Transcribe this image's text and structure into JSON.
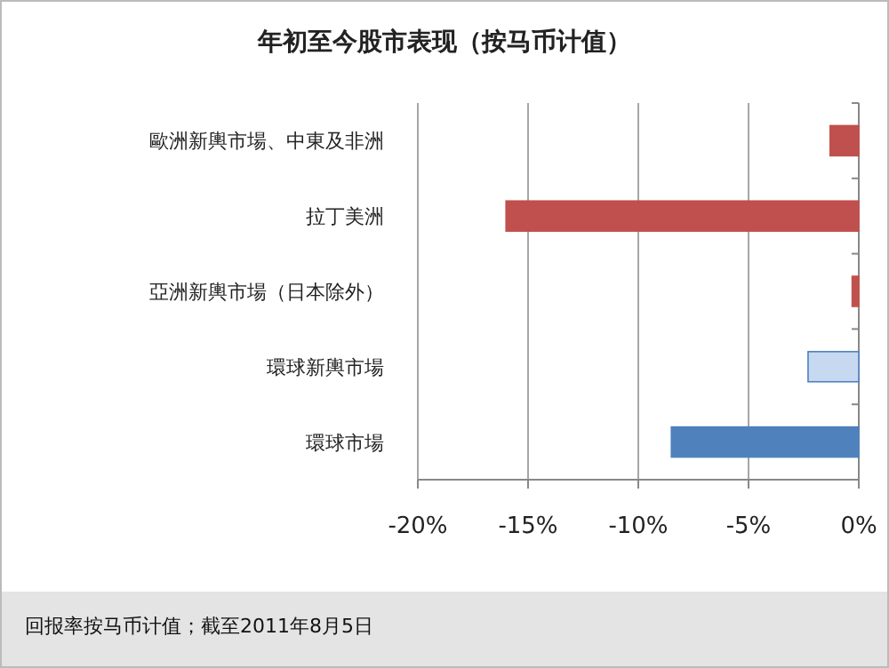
{
  "chart_data": {
    "type": "bar",
    "orientation": "horizontal",
    "title": "年初至今股市表现（按马币计值）",
    "categories": [
      "歐洲新輿市場、中東及非洲",
      "拉丁美洲",
      "亞洲新輿市場（日本除外）",
      "環球新輿市場",
      "環球市場"
    ],
    "values": [
      -1.3,
      -16.0,
      -0.3,
      -2.3,
      -8.5
    ],
    "colors": [
      "#c0504d",
      "#c0504d",
      "#c0504d",
      "#c6d9f1",
      "#4f81bd"
    ],
    "xlim": [
      -20,
      0
    ],
    "xticks": [
      {
        "value": -20,
        "label": "-20%"
      },
      {
        "value": -15,
        "label": "-15%"
      },
      {
        "value": -10,
        "label": "-10%"
      },
      {
        "value": -5,
        "label": "-5%"
      },
      {
        "value": 0,
        "label": "0%"
      }
    ],
    "grid": "x",
    "annotations": [
      "回报率按马币计值；截至2011年8月5日"
    ]
  }
}
